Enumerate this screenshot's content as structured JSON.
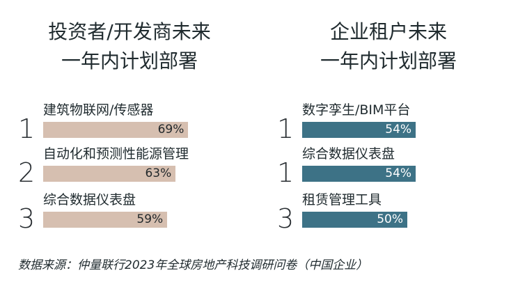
{
  "colors": {
    "left_bar": "#d6bfb0",
    "right_bar": "#3d7286"
  },
  "chart_data": [
    {
      "type": "bar",
      "orientation": "horizontal",
      "title_lines": [
        "投资者/开发商未来",
        "一年内计划部署"
      ],
      "ranks": [
        "1",
        "2",
        "3"
      ],
      "categories": [
        "建筑物联网/传感器",
        "自动化和预测性能源管理",
        "综合数据仪表盘"
      ],
      "values": [
        69,
        63,
        59
      ],
      "value_labels": [
        "69%",
        "63%",
        "59%"
      ],
      "color": "#d6bfb0"
    },
    {
      "type": "bar",
      "orientation": "horizontal",
      "title_lines": [
        "企业租户未来",
        "一年内计划部署"
      ],
      "ranks": [
        "1",
        "1",
        "3"
      ],
      "categories": [
        "数字孪生/BIM平台",
        "综合数据仪表盘",
        "租赁管理工具"
      ],
      "values": [
        54,
        54,
        50
      ],
      "value_labels": [
        "54%",
        "54%",
        "50%"
      ],
      "color": "#3d7286"
    }
  ],
  "source": "数据来源：仲量联行2023年全球房地产科技调研问卷（中国企业）"
}
